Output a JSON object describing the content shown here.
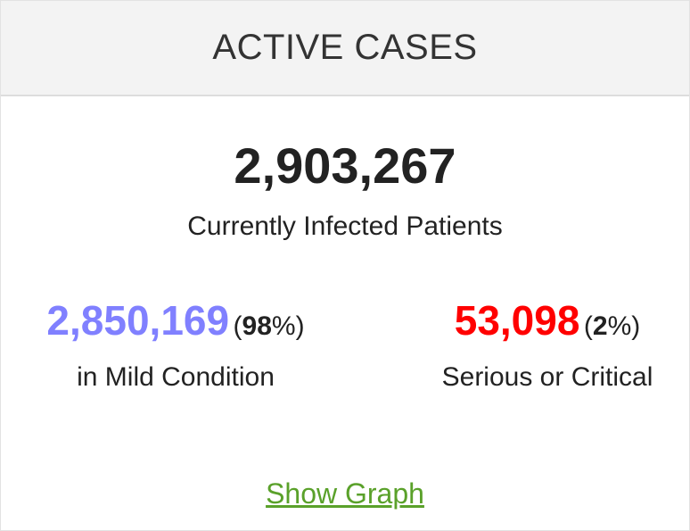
{
  "header": {
    "title": "ACTIVE CASES"
  },
  "total": {
    "value": "2,903,267",
    "label": "Currently Infected Patients"
  },
  "mild": {
    "value": "2,850,169",
    "percent_open": "(",
    "percent_value": "98",
    "percent_close": "%)",
    "label": "in Mild Condition",
    "color": "#8080ff"
  },
  "serious": {
    "value": "53,098",
    "percent_open": "(",
    "percent_value": "2",
    "percent_close": "%)",
    "label": "Serious or Critical",
    "color": "#ff0000"
  },
  "actions": {
    "show_graph_label": "Show Graph",
    "link_color": "#5aa12a"
  }
}
